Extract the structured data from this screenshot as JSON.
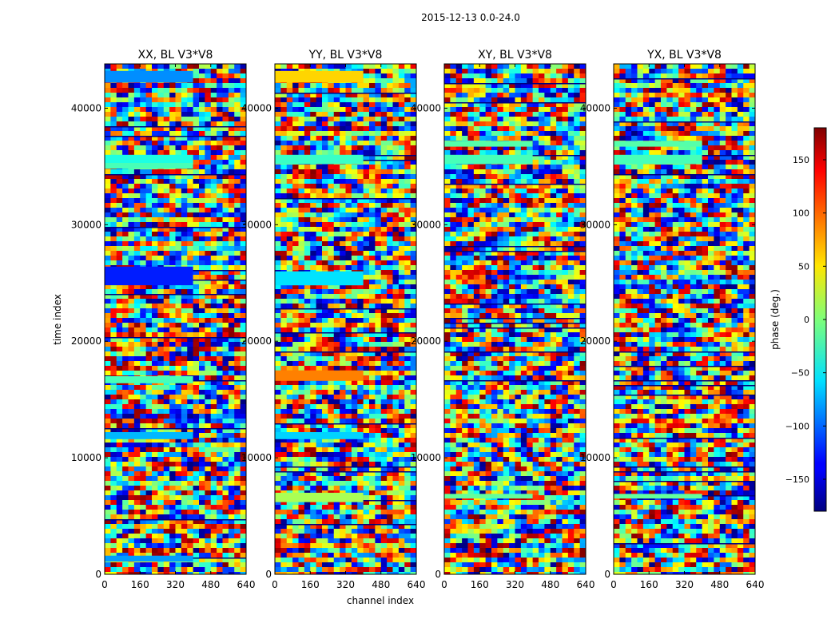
{
  "figure": {
    "suptitle": "2015-12-13 0.0-24.0",
    "ylabel": "time index",
    "xlabel": "channel index"
  },
  "chart_data": [
    {
      "type": "heatmap",
      "title": "XX, BL V3*V8",
      "xlim": [
        0,
        640
      ],
      "ylim": [
        0,
        43800
      ],
      "x_ticks": [
        "0",
        "160",
        "320",
        "480",
        "640"
      ],
      "y_ticks": [
        "0",
        "10000",
        "20000",
        "30000",
        "40000"
      ],
      "value_range": [
        -180,
        180
      ],
      "flat_bands": [
        [
          36000,
          35200,
          -35
        ],
        [
          35300,
          34800,
          -20
        ],
        [
          26400,
          24800,
          -125
        ],
        [
          12200,
          11600,
          -70
        ],
        [
          43200,
          42200,
          -85
        ],
        [
          17000,
          16400,
          -20
        ],
        [
          1600,
          1100,
          -80
        ]
      ]
    },
    {
      "type": "heatmap",
      "title": "YY, BL V3*V8",
      "xlim": [
        0,
        640
      ],
      "ylim": [
        0,
        43800
      ],
      "x_ticks": [
        "0",
        "160",
        "320",
        "480",
        "640"
      ],
      "y_ticks": [
        "0",
        "10000",
        "20000",
        "30000",
        "40000"
      ],
      "value_range": [
        -180,
        180
      ],
      "flat_bands": [
        [
          43200,
          42200,
          60
        ],
        [
          36000,
          35200,
          -25
        ],
        [
          26000,
          24800,
          -55
        ],
        [
          17500,
          16600,
          90
        ],
        [
          12200,
          11600,
          -60
        ],
        [
          7000,
          6200,
          15
        ]
      ]
    },
    {
      "type": "heatmap",
      "title": "XY, BL V3*V8",
      "xlim": [
        0,
        640
      ],
      "ylim": [
        0,
        43800
      ],
      "x_ticks": [
        "0",
        "160",
        "320",
        "480",
        "640"
      ],
      "y_ticks": [
        "0",
        "10000",
        "20000",
        "30000",
        "40000"
      ],
      "value_range": [
        -180,
        180
      ],
      "flat_bands": [
        [
          36000,
          35200,
          -20
        ],
        [
          37200,
          36700,
          -15
        ],
        [
          6900,
          6500,
          -10
        ]
      ]
    },
    {
      "type": "heatmap",
      "title": "YX, BL V3*V8",
      "xlim": [
        0,
        640
      ],
      "ylim": [
        0,
        43800
      ],
      "x_ticks": [
        "0",
        "160",
        "320",
        "480",
        "640"
      ],
      "y_ticks": [
        "0",
        "10000",
        "20000",
        "30000",
        "40000"
      ],
      "value_range": [
        -180,
        180
      ],
      "flat_bands": [
        [
          36000,
          35200,
          -20
        ],
        [
          37200,
          36700,
          -15
        ],
        [
          6900,
          6500,
          -10
        ]
      ]
    }
  ],
  "colorbar": {
    "label": "phase (deg.)",
    "range": [
      -180,
      180
    ],
    "ticks": [
      "150",
      "100",
      "50",
      "0",
      "−50",
      "−100",
      "−150"
    ],
    "tick_values": [
      150,
      100,
      50,
      0,
      -50,
      -100,
      -150
    ],
    "colormap": "jet"
  }
}
